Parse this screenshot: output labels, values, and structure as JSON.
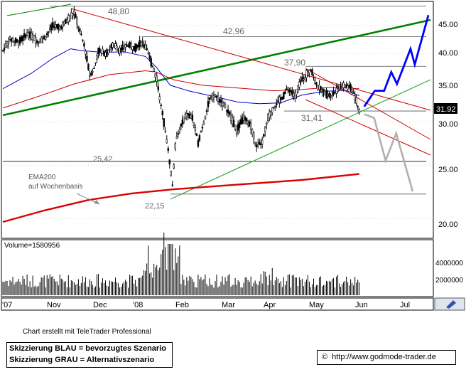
{
  "chart_data": [
    {
      "type": "candlestick",
      "title": "",
      "x_ticks": [
        "'07",
        "Nov",
        "Dec",
        "'08",
        "Feb",
        "Mar",
        "Apr",
        "May",
        "Jun",
        "Jul"
      ],
      "y_ticks": [
        "45.00",
        "40.00",
        "35.00",
        "30.00",
        "25.00",
        "20.00"
      ],
      "y_scale": "log",
      "ylim": [
        18.5,
        49.5
      ],
      "last_price": "31.92",
      "price_labels": {
        "p4880": "48,80",
        "p4296": "42,96",
        "p3790": "37,90",
        "p3141": "31,41",
        "p2542": "25,42",
        "p2215": "22,15"
      },
      "horizontal_levels": [
        48.8,
        42.96,
        37.9,
        31.41,
        25.42,
        22.15
      ],
      "annotations": {
        "ema_line1": "EMA200",
        "ema_line2": "auf Wochenbasis"
      },
      "price_path": [
        [
          0,
          40.5
        ],
        [
          10,
          42.5
        ],
        [
          22,
          42.0
        ],
        [
          35,
          43.5
        ],
        [
          50,
          42.0
        ],
        [
          60,
          43.0
        ],
        [
          70,
          45.0
        ],
        [
          80,
          44.5
        ],
        [
          90,
          46.0
        ],
        [
          100,
          47.5
        ],
        [
          108,
          44.0
        ],
        [
          115,
          41.0
        ],
        [
          122,
          36.5
        ],
        [
          128,
          37.5
        ],
        [
          134,
          40.5
        ],
        [
          145,
          40.0
        ],
        [
          155,
          41.5
        ],
        [
          165,
          40.5
        ],
        [
          175,
          41.5
        ],
        [
          185,
          41.0
        ],
        [
          195,
          42.0
        ],
        [
          202,
          40.5
        ],
        [
          210,
          38.0
        ],
        [
          216,
          36.0
        ],
        [
          222,
          32.0
        ],
        [
          228,
          29.0
        ],
        [
          233,
          26.0
        ],
        [
          238,
          23.0
        ],
        [
          243,
          28.0
        ],
        [
          250,
          29.5
        ],
        [
          258,
          31.0
        ],
        [
          266,
          30.5
        ],
        [
          274,
          27.5
        ],
        [
          282,
          30.0
        ],
        [
          290,
          33.0
        ],
        [
          298,
          33.5
        ],
        [
          308,
          32.5
        ],
        [
          318,
          31.0
        ],
        [
          328,
          29.0
        ],
        [
          338,
          30.5
        ],
        [
          348,
          29.5
        ],
        [
          356,
          27.0
        ],
        [
          364,
          27.5
        ],
        [
          372,
          30.5
        ],
        [
          380,
          32.0
        ],
        [
          390,
          33.0
        ],
        [
          400,
          34.5
        ],
        [
          410,
          33.5
        ],
        [
          418,
          35.5
        ],
        [
          425,
          36.5
        ],
        [
          432,
          37.5
        ],
        [
          440,
          35.0
        ],
        [
          450,
          34.0
        ],
        [
          460,
          33.5
        ],
        [
          470,
          34.5
        ],
        [
          480,
          35.0
        ],
        [
          490,
          34.5
        ],
        [
          500,
          31.5
        ]
      ],
      "ema_short": [
        [
          0,
          34.5
        ],
        [
          40,
          36.8
        ],
        [
          70,
          39.2
        ],
        [
          95,
          40.8
        ],
        [
          110,
          40.5
        ],
        [
          140,
          40.2
        ],
        [
          170,
          40.3
        ],
        [
          200,
          39.5
        ],
        [
          215,
          37.8
        ],
        [
          235,
          35.0
        ],
        [
          260,
          34.2
        ],
        [
          300,
          33.3
        ],
        [
          330,
          32.6
        ],
        [
          360,
          32.4
        ],
        [
          390,
          32.5
        ],
        [
          420,
          33.6
        ],
        [
          450,
          34.1
        ],
        [
          480,
          34.3
        ],
        [
          500,
          33.5
        ]
      ],
      "ema_long": [
        [
          0,
          31.8
        ],
        [
          50,
          33.4
        ],
        [
          100,
          35.2
        ],
        [
          150,
          36.6
        ],
        [
          200,
          37.2
        ],
        [
          215,
          37.0
        ],
        [
          240,
          35.8
        ],
        [
          280,
          35.0
        ],
        [
          330,
          34.6
        ],
        [
          380,
          34.2
        ],
        [
          420,
          34.4
        ],
        [
          460,
          34.7
        ],
        [
          500,
          34.5
        ]
      ],
      "ema200_weekly": [
        [
          0,
          19.7
        ],
        [
          60,
          20.7
        ],
        [
          120,
          21.6
        ],
        [
          180,
          22.2
        ],
        [
          240,
          22.6
        ],
        [
          320,
          23.0
        ],
        [
          420,
          23.5
        ],
        [
          500,
          24.1
        ]
      ],
      "scenario_blue": [
        [
          507,
          32.0
        ],
        [
          522,
          34.2
        ],
        [
          535,
          34.2
        ],
        [
          545,
          37.0
        ],
        [
          553,
          35.2
        ],
        [
          572,
          40.8
        ],
        [
          578,
          38.2
        ],
        [
          597,
          47.0
        ]
      ],
      "scenario_grey": [
        [
          507,
          31.0
        ],
        [
          521,
          30.5
        ],
        [
          537,
          25.5
        ],
        [
          552,
          28.6
        ],
        [
          575,
          22.4
        ]
      ],
      "volume": {
        "label": "Volume=1580956",
        "y_ticks": [
          "4000000",
          "2000000"
        ],
        "ymax": 5000000
      }
    }
  ],
  "footer": {
    "credit": "Chart erstellt mit TeleTrader Professional",
    "legend_blue": "Skizzierung BLAU = bevorzugtes Szenario",
    "legend_grey": "Skizzierung GRAU = Alternativszenario",
    "copyright_symbol": "©",
    "source_url": "http://www.godmode-trader.de"
  },
  "colors": {
    "candles": "#000000",
    "ema_short": "#0000cc",
    "ema_long": "#cc0000",
    "ema200": "#dd0000",
    "trend_up_main": "#008000",
    "trend_up_lower": "#33aa33",
    "channel_down": "#cc0000",
    "scenario_blue": "#0000ff",
    "scenario_grey": "#b0b0b0",
    "last_price_bg": "#000000"
  }
}
